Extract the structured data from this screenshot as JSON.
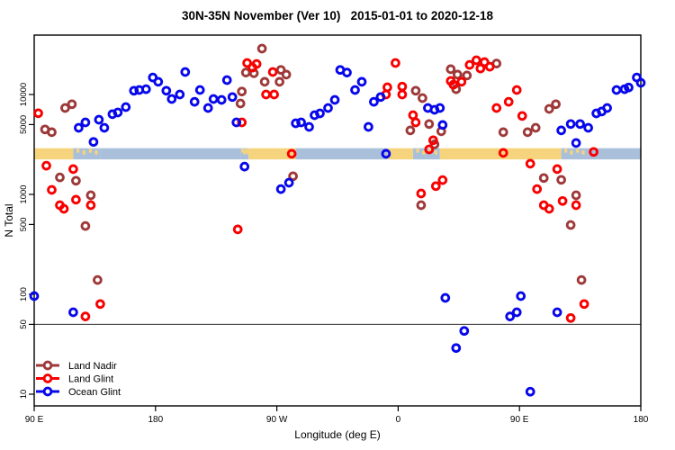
{
  "title": "30N-35N November (Ver 10)   2015-01-01 to 2020-12-18",
  "chart_data": {
    "type": "scatter",
    "title": "30N-35N November (Ver 10)   2015-01-01 to 2020-12-18",
    "xlabel": "Longitude (deg E)",
    "ylabel": "N Total",
    "x_axis": {
      "note": "longitude axis runs eastward: 90E -> 180 -> 90W -> 0 -> 90E -> 180, stored as 90..540 axis degrees",
      "range": [
        90,
        540
      ],
      "ticks": [
        {
          "value": 90,
          "label": "90 E"
        },
        {
          "value": 180,
          "label": "180"
        },
        {
          "value": 270,
          "label": "90 W"
        },
        {
          "value": 360,
          "label": "0"
        },
        {
          "value": 450,
          "label": "90 E"
        },
        {
          "value": 540,
          "label": "180"
        }
      ]
    },
    "y_axis": {
      "scale": "log",
      "range": [
        8,
        38500
      ],
      "ticks": [
        {
          "value": 10,
          "label": "10"
        },
        {
          "value": 50,
          "label": "50"
        },
        {
          "value": 100,
          "label": "100"
        },
        {
          "value": 500,
          "label": "500"
        },
        {
          "value": 1000,
          "label": "1000"
        },
        {
          "value": 5000,
          "label": "5000"
        },
        {
          "value": 10000,
          "label": "10000"
        }
      ]
    },
    "reference_line_y": 50,
    "land_ocean_band": {
      "y_top_N": 2900,
      "y_bottom_N": 2240,
      "land_color": "#F6D47D",
      "ocean_color": "#A9BFDA",
      "segments": [
        {
          "from": 90,
          "to": 119,
          "type": "land"
        },
        {
          "from": 119,
          "to": 139,
          "type": "mixed"
        },
        {
          "from": 139,
          "to": 243,
          "type": "ocean"
        },
        {
          "from": 243,
          "to": 249,
          "type": "mixed"
        },
        {
          "from": 249,
          "to": 284,
          "type": "land"
        },
        {
          "from": 284,
          "to": 352,
          "type": "ocean"
        },
        {
          "from": 352,
          "to": 371,
          "type": "land"
        },
        {
          "from": 371,
          "to": 391,
          "type": "mixed"
        },
        {
          "from": 391,
          "to": 481,
          "type": "land"
        },
        {
          "from": 481,
          "to": 500,
          "type": "mixed"
        },
        {
          "from": 500,
          "to": 541,
          "type": "ocean"
        }
      ]
    },
    "series": [
      {
        "name": "Land Nadir",
        "color": "#9E3939",
        "points": [
          [
            98,
            4470
          ],
          [
            103,
            4190
          ],
          [
            113,
            7330
          ],
          [
            118,
            8000
          ],
          [
            259,
            28800
          ],
          [
            247,
            16600
          ],
          [
            253,
            16300
          ],
          [
            261,
            13400
          ],
          [
            273,
            17600
          ],
          [
            277,
            15800
          ],
          [
            272,
            13400
          ],
          [
            244,
            10700
          ],
          [
            243,
            8130
          ],
          [
            373,
            10900
          ],
          [
            378,
            9200
          ],
          [
            369,
            4370
          ],
          [
            383,
            5060
          ],
          [
            392,
            4280
          ],
          [
            399,
            17900
          ],
          [
            404,
            15800
          ],
          [
            403,
            11300
          ],
          [
            411,
            15500
          ],
          [
            433,
            20400
          ],
          [
            472,
            7180
          ],
          [
            477,
            8000
          ],
          [
            438,
            4190
          ],
          [
            456,
            4190
          ],
          [
            462,
            4640
          ],
          [
            109,
            1480
          ],
          [
            121,
            1370
          ],
          [
            132,
            980
          ],
          [
            128,
            483
          ],
          [
            282,
            1520
          ],
          [
            377,
            780
          ],
          [
            468,
            1460
          ],
          [
            481,
            1400
          ],
          [
            492,
            980
          ],
          [
            488,
            494
          ],
          [
            137,
            139
          ],
          [
            496,
            139
          ],
          [
            387,
            3170
          ]
        ]
      },
      {
        "name": "Land Glint",
        "color": "#F80000",
        "points": [
          [
            93,
            6500
          ],
          [
            248,
            20650
          ],
          [
            255,
            20200
          ],
          [
            252,
            18600
          ],
          [
            267,
            16800
          ],
          [
            262,
            10000
          ],
          [
            268,
            10000
          ],
          [
            244,
            5260
          ],
          [
            351,
            10000
          ],
          [
            352,
            11800
          ],
          [
            358,
            20650
          ],
          [
            363,
            12000
          ],
          [
            363,
            10000
          ],
          [
            371,
            6200
          ],
          [
            373,
            5260
          ],
          [
            386,
            3480
          ],
          [
            399,
            13650
          ],
          [
            401,
            12550
          ],
          [
            407,
            13400
          ],
          [
            413,
            19800
          ],
          [
            418,
            22000
          ],
          [
            424,
            21100
          ],
          [
            428,
            19000
          ],
          [
            421,
            18200
          ],
          [
            448,
            11100
          ],
          [
            442,
            8460
          ],
          [
            433,
            7330
          ],
          [
            452,
            6100
          ],
          [
            99,
            1940
          ],
          [
            119,
            1790
          ],
          [
            103,
            1110
          ],
          [
            109,
            780
          ],
          [
            112,
            718
          ],
          [
            121,
            884
          ],
          [
            132,
            780
          ],
          [
            241,
            446
          ],
          [
            281,
            2550
          ],
          [
            377,
            1020
          ],
          [
            388,
            1210
          ],
          [
            393,
            1390
          ],
          [
            458,
            2030
          ],
          [
            478,
            1790
          ],
          [
            463,
            1130
          ],
          [
            482,
            860
          ],
          [
            492,
            780
          ],
          [
            468,
            780
          ],
          [
            472,
            718
          ],
          [
            438,
            2600
          ],
          [
            383,
            2820
          ],
          [
            505,
            2660
          ],
          [
            139,
            80
          ],
          [
            128,
            60
          ],
          [
            488,
            58
          ],
          [
            498,
            80
          ]
        ]
      },
      {
        "name": "Ocean Glint",
        "color": "#0707EB",
        "points": [
          [
            123,
            4640
          ],
          [
            128,
            5260
          ],
          [
            134,
            3350
          ],
          [
            138,
            5600
          ],
          [
            142,
            4640
          ],
          [
            148,
            6350
          ],
          [
            152,
            6610
          ],
          [
            158,
            7480
          ],
          [
            164,
            10900
          ],
          [
            168,
            11100
          ],
          [
            173,
            11300
          ],
          [
            178,
            14800
          ],
          [
            182,
            13400
          ],
          [
            188,
            10900
          ],
          [
            192,
            9020
          ],
          [
            198,
            10000
          ],
          [
            202,
            16800
          ],
          [
            209,
            8460
          ],
          [
            213,
            11100
          ],
          [
            219,
            7330
          ],
          [
            223,
            9020
          ],
          [
            229,
            8830
          ],
          [
            233,
            13950
          ],
          [
            237,
            9440
          ],
          [
            240,
            5260
          ],
          [
            284,
            5150
          ],
          [
            288,
            5260
          ],
          [
            294,
            4740
          ],
          [
            298,
            6200
          ],
          [
            302,
            6470
          ],
          [
            308,
            7330
          ],
          [
            313,
            8830
          ],
          [
            317,
            17600
          ],
          [
            322,
            16600
          ],
          [
            328,
            11100
          ],
          [
            333,
            13400
          ],
          [
            338,
            4740
          ],
          [
            342,
            8460
          ],
          [
            347,
            9440
          ],
          [
            382,
            7330
          ],
          [
            387,
            7030
          ],
          [
            391,
            7330
          ],
          [
            393,
            4950
          ],
          [
            351,
            2550
          ],
          [
            246,
            1900
          ],
          [
            279,
            1310
          ],
          [
            273,
            1130
          ],
          [
            481,
            4370
          ],
          [
            488,
            5060
          ],
          [
            495,
            5060
          ],
          [
            501,
            4640
          ],
          [
            507,
            6470
          ],
          [
            511,
            6750
          ],
          [
            515,
            7330
          ],
          [
            522,
            11100
          ],
          [
            528,
            11300
          ],
          [
            531,
            11750
          ],
          [
            537,
            14800
          ],
          [
            540,
            13100
          ],
          [
            492,
            3270
          ],
          [
            90,
            96
          ],
          [
            119,
            66
          ],
          [
            395,
            92
          ],
          [
            409,
            43
          ],
          [
            403,
            29
          ],
          [
            451,
            96
          ],
          [
            443,
            60
          ],
          [
            448,
            66
          ],
          [
            478,
            66
          ],
          [
            458,
            10.6
          ]
        ]
      }
    ],
    "legend": {
      "position": "bottom-left",
      "items": [
        "Land Nadir",
        "Land Glint",
        "Ocean Glint"
      ]
    }
  }
}
